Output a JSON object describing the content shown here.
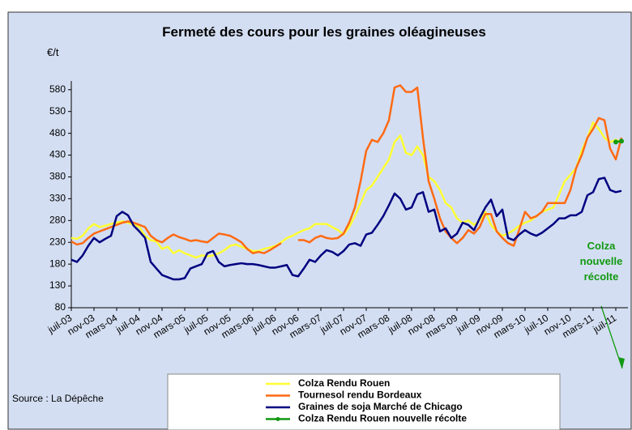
{
  "chart_data": {
    "type": "line",
    "title": "Fermeté des cours pour les graines oléagineuses",
    "y_unit": "€/t",
    "source": "Source : La Dépêche",
    "annotation": [
      "Colza",
      "nouvelle",
      "récolte"
    ],
    "categories": [
      "juil-03",
      null,
      null,
      null,
      "nov-03",
      null,
      null,
      null,
      "mars-04",
      null,
      null,
      null,
      "juil-04",
      null,
      null,
      null,
      "nov-04",
      null,
      null,
      null,
      "mars-05",
      null,
      null,
      null,
      "juil-05",
      null,
      null,
      null,
      "nov-05",
      null,
      null,
      null,
      "mars-06",
      null,
      null,
      null,
      "juil-06",
      null,
      null,
      null,
      "nov-06",
      null,
      null,
      null,
      "mars-07",
      null,
      null,
      null,
      "juil-07",
      null,
      null,
      null,
      "nov-07",
      null,
      null,
      null,
      "mars-08",
      null,
      null,
      null,
      "juil-08",
      null,
      null,
      null,
      "nov-08",
      null,
      null,
      null,
      "mars-09",
      null,
      null,
      null,
      "juil-09",
      null,
      null,
      null,
      "nov-09",
      null,
      null,
      null,
      "mars-10",
      null,
      null,
      null,
      "juil-10",
      null,
      null,
      null,
      "nov-10",
      null,
      null,
      null,
      "mars-11",
      null,
      null,
      null,
      "juil-11",
      null
    ],
    "ylim": [
      80,
      600
    ],
    "yticks": [
      80,
      130,
      180,
      230,
      280,
      330,
      380,
      430,
      480,
      530,
      580
    ],
    "grid": false,
    "series": [
      {
        "name": "Colza Rendu Rouen",
        "color": "#ffff33",
        "values": [
          240,
          238,
          245,
          262,
          272,
          265,
          268,
          272,
          275,
          278,
          275,
          270,
          265,
          245,
          235,
          232,
          215,
          220,
          205,
          212,
          205,
          200,
          195,
          200,
          198,
          200,
          205,
          212,
          222,
          225,
          220,
          215,
          210,
          210,
          215,
          218,
          222,
          230,
          240,
          245,
          252,
          258,
          262,
          272,
          272,
          272,
          265,
          258,
          248,
          265,
          290,
          320,
          350,
          360,
          380,
          400,
          420,
          460,
          475,
          435,
          430,
          450,
          430,
          380,
          370,
          350,
          320,
          310,
          285,
          275,
          280,
          270,
          280,
          300,
          270,
          255,
          245,
          250,
          258,
          268,
          275,
          280,
          290,
          300,
          305,
          310,
          340,
          370,
          385,
          400,
          440,
          470,
          505,
          490,
          470,
          460,
          465,
          460
        ]
      },
      {
        "name": "Tournesol rendu Bordeaux",
        "color": "#ff6a13",
        "values": [
          232,
          225,
          228,
          240,
          250,
          255,
          260,
          265,
          270,
          275,
          278,
          275,
          270,
          265,
          245,
          235,
          230,
          240,
          248,
          242,
          238,
          233,
          235,
          232,
          230,
          240,
          250,
          248,
          245,
          238,
          230,
          215,
          205,
          208,
          205,
          212,
          220,
          228,
          null,
          null,
          235,
          235,
          230,
          240,
          245,
          240,
          238,
          240,
          250,
          275,
          310,
          370,
          440,
          465,
          460,
          480,
          510,
          585,
          590,
          575,
          575,
          585,
          470,
          370,
          330,
          285,
          255,
          240,
          228,
          240,
          258,
          250,
          265,
          295,
          295,
          255,
          240,
          228,
          222,
          260,
          300,
          285,
          290,
          300,
          320,
          320,
          320,
          320,
          350,
          400,
          430,
          470,
          490,
          515,
          510,
          445,
          420,
          470
        ]
      },
      {
        "name": "Graines de soja Marché de Chicago",
        "color": "#000080",
        "values": [
          190,
          185,
          200,
          222,
          240,
          230,
          238,
          245,
          290,
          300,
          292,
          268,
          255,
          240,
          185,
          170,
          155,
          150,
          145,
          145,
          148,
          170,
          175,
          180,
          205,
          210,
          185,
          175,
          178,
          180,
          182,
          180,
          180,
          178,
          175,
          172,
          172,
          175,
          178,
          155,
          152,
          170,
          190,
          185,
          200,
          212,
          208,
          200,
          210,
          225,
          228,
          222,
          248,
          252,
          270,
          290,
          315,
          342,
          330,
          305,
          310,
          340,
          345,
          300,
          305,
          255,
          262,
          240,
          250,
          275,
          270,
          258,
          285,
          310,
          328,
          290,
          305,
          240,
          235,
          248,
          258,
          250,
          245,
          252,
          262,
          272,
          285,
          285,
          292,
          292,
          300,
          338,
          345,
          375,
          378,
          350,
          345,
          348
        ]
      },
      {
        "name": "Colza Rendu Rouen nouvelle récolte",
        "color": "#119911",
        "values": [
          null,
          null,
          null,
          null,
          null,
          null,
          null,
          null,
          null,
          null,
          null,
          null,
          null,
          null,
          null,
          null,
          null,
          null,
          null,
          null,
          null,
          null,
          null,
          null,
          null,
          null,
          null,
          null,
          null,
          null,
          null,
          null,
          null,
          null,
          null,
          null,
          null,
          null,
          null,
          null,
          null,
          null,
          null,
          null,
          null,
          null,
          null,
          null,
          null,
          null,
          null,
          null,
          null,
          null,
          null,
          null,
          null,
          null,
          null,
          null,
          null,
          null,
          null,
          null,
          null,
          null,
          null,
          null,
          null,
          null,
          null,
          null,
          null,
          null,
          null,
          null,
          null,
          null,
          null,
          null,
          null,
          null,
          null,
          null,
          null,
          null,
          null,
          null,
          null,
          null,
          null,
          null,
          null,
          null,
          null,
          null,
          460,
          462
        ]
      }
    ]
  }
}
